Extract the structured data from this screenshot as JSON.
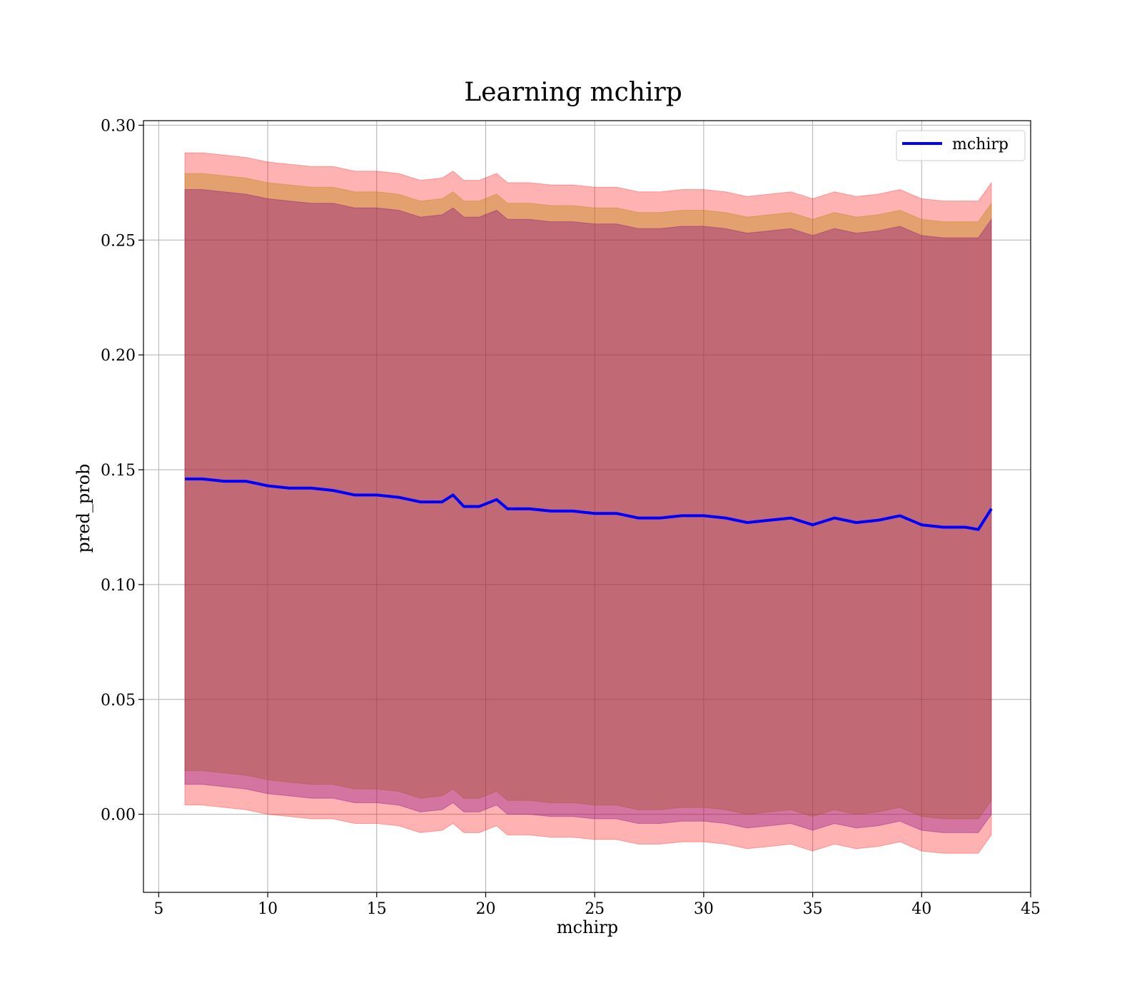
{
  "chart_data": {
    "type": "area",
    "title": "Learning mchirp",
    "xlabel": "mchirp",
    "ylabel": "pred_prob",
    "xlim": [
      4.3,
      45
    ],
    "ylim": [
      -0.034,
      0.302
    ],
    "grid": true,
    "legend": {
      "placement": "top-right",
      "entries": [
        "mchirp"
      ]
    },
    "xticks": [
      5,
      10,
      15,
      20,
      25,
      30,
      35,
      40,
      45
    ],
    "xtick_labels": [
      "5",
      "10",
      "15",
      "20",
      "25",
      "30",
      "35",
      "40",
      "45"
    ],
    "yticks": [
      0.0,
      0.05,
      0.1,
      0.15,
      0.2,
      0.25,
      0.3
    ],
    "ytick_labels": [
      "0.00",
      "0.05",
      "0.10",
      "0.15",
      "0.20",
      "0.25",
      "0.30"
    ],
    "x": [
      6.2,
      7.0,
      8.0,
      9.0,
      10.0,
      11.0,
      12.0,
      13.0,
      14.0,
      15.0,
      16.0,
      17.0,
      18.0,
      18.5,
      19.0,
      19.7,
      20.5,
      21.0,
      22.0,
      23.0,
      24.0,
      25.0,
      26.0,
      27.0,
      28.0,
      29.0,
      30.0,
      31.0,
      32.0,
      33.0,
      34.0,
      35.0,
      36.0,
      37.0,
      38.0,
      39.0,
      40.0,
      41.0,
      42.0,
      42.6,
      43.2
    ],
    "series": [
      {
        "name": "mchirp",
        "color": "#0000ff",
        "values": [
          0.146,
          0.146,
          0.145,
          0.145,
          0.143,
          0.142,
          0.142,
          0.141,
          0.139,
          0.139,
          0.138,
          0.136,
          0.136,
          0.139,
          0.134,
          0.134,
          0.137,
          0.133,
          0.133,
          0.132,
          0.132,
          0.131,
          0.131,
          0.129,
          0.129,
          0.13,
          0.13,
          0.129,
          0.127,
          0.128,
          0.129,
          0.126,
          0.129,
          0.127,
          0.128,
          0.13,
          0.126,
          0.125,
          0.125,
          0.124,
          0.133
        ]
      }
    ],
    "bands": [
      {
        "color": "#ff0000",
        "opacity": 0.3,
        "upper": [
          0.288,
          0.288,
          0.287,
          0.286,
          0.284,
          0.283,
          0.282,
          0.282,
          0.28,
          0.28,
          0.279,
          0.276,
          0.277,
          0.28,
          0.276,
          0.276,
          0.279,
          0.275,
          0.275,
          0.274,
          0.274,
          0.273,
          0.273,
          0.271,
          0.271,
          0.272,
          0.272,
          0.271,
          0.269,
          0.27,
          0.271,
          0.268,
          0.271,
          0.269,
          0.27,
          0.272,
          0.268,
          0.267,
          0.267,
          0.267,
          0.275
        ],
        "lower": [
          0.004,
          0.004,
          0.003,
          0.002,
          0.0,
          -0.001,
          -0.002,
          -0.002,
          -0.004,
          -0.004,
          -0.005,
          -0.008,
          -0.007,
          -0.004,
          -0.008,
          -0.008,
          -0.005,
          -0.009,
          -0.009,
          -0.01,
          -0.01,
          -0.011,
          -0.011,
          -0.013,
          -0.013,
          -0.012,
          -0.012,
          -0.013,
          -0.015,
          -0.014,
          -0.013,
          -0.016,
          -0.013,
          -0.015,
          -0.014,
          -0.012,
          -0.016,
          -0.017,
          -0.017,
          -0.017,
          -0.009
        ]
      },
      {
        "color": "#b8860b",
        "opacity": 0.4,
        "upper": [
          0.279,
          0.279,
          0.278,
          0.277,
          0.275,
          0.274,
          0.273,
          0.273,
          0.271,
          0.271,
          0.27,
          0.267,
          0.268,
          0.271,
          0.267,
          0.267,
          0.27,
          0.266,
          0.266,
          0.265,
          0.265,
          0.264,
          0.264,
          0.262,
          0.262,
          0.263,
          0.263,
          0.262,
          0.26,
          0.261,
          0.262,
          0.259,
          0.262,
          0.26,
          0.261,
          0.263,
          0.259,
          0.258,
          0.258,
          0.258,
          0.266
        ],
        "lower": [
          0.019,
          0.019,
          0.018,
          0.017,
          0.015,
          0.014,
          0.013,
          0.013,
          0.011,
          0.011,
          0.01,
          0.007,
          0.008,
          0.011,
          0.007,
          0.007,
          0.01,
          0.006,
          0.006,
          0.005,
          0.005,
          0.004,
          0.004,
          0.002,
          0.002,
          0.003,
          0.003,
          0.002,
          0.0,
          0.001,
          0.002,
          -0.001,
          0.002,
          0.0,
          0.001,
          0.003,
          -0.001,
          -0.002,
          -0.002,
          -0.002,
          0.006
        ]
      },
      {
        "color": "#800080",
        "opacity": 0.35,
        "upper": [
          0.272,
          0.272,
          0.271,
          0.27,
          0.268,
          0.267,
          0.266,
          0.266,
          0.264,
          0.264,
          0.263,
          0.26,
          0.261,
          0.264,
          0.26,
          0.26,
          0.263,
          0.259,
          0.259,
          0.258,
          0.258,
          0.257,
          0.257,
          0.255,
          0.255,
          0.256,
          0.256,
          0.255,
          0.253,
          0.254,
          0.255,
          0.252,
          0.255,
          0.253,
          0.254,
          0.256,
          0.252,
          0.251,
          0.251,
          0.251,
          0.259
        ],
        "lower": [
          0.013,
          0.013,
          0.012,
          0.011,
          0.009,
          0.008,
          0.007,
          0.007,
          0.005,
          0.005,
          0.004,
          0.001,
          0.002,
          0.005,
          0.001,
          0.001,
          0.004,
          0.0,
          0.0,
          -0.001,
          -0.001,
          -0.002,
          -0.002,
          -0.004,
          -0.004,
          -0.003,
          -0.003,
          -0.004,
          -0.006,
          -0.005,
          -0.004,
          -0.007,
          -0.004,
          -0.006,
          -0.005,
          -0.003,
          -0.007,
          -0.008,
          -0.008,
          -0.008,
          0.0
        ]
      }
    ]
  }
}
